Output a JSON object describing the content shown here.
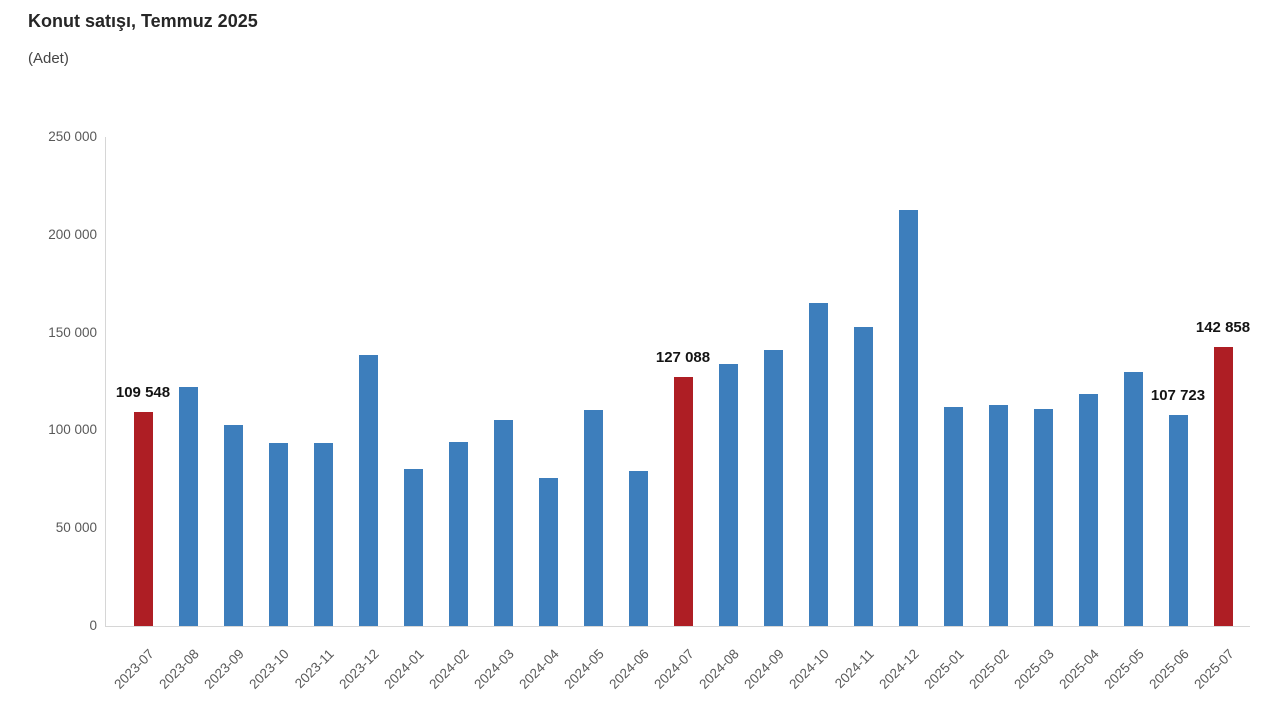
{
  "chart": {
    "title": "Konut satışı, Temmuz 2025",
    "subtitle": "(Adet)"
  },
  "chart_data": {
    "type": "bar",
    "title": "Konut satışı, Temmuz 2025",
    "subtitle": "(Adet)",
    "unit": "Adet",
    "xlabel": "",
    "ylabel": "",
    "ylim": [
      0,
      250000
    ],
    "ytick_interval": 50000,
    "ytick_labels": [
      "0",
      "50 000",
      "100 000",
      "150 000",
      "200 000",
      "250 000"
    ],
    "grid": false,
    "legend": "none",
    "bar_color": "#3d7ebc",
    "highlight_color": "#ae1e24",
    "categories": [
      "2023-07",
      "2023-08",
      "2023-09",
      "2023-10",
      "2023-11",
      "2023-12",
      "2024-01",
      "2024-02",
      "2024-03",
      "2024-04",
      "2024-05",
      "2024-06",
      "2024-07",
      "2024-08",
      "2024-09",
      "2024-10",
      "2024-11",
      "2024-12",
      "2025-01",
      "2025-02",
      "2025-03",
      "2025-04",
      "2025-05",
      "2025-06",
      "2025-07"
    ],
    "values": [
      109548,
      122091,
      102656,
      93761,
      93514,
      138577,
      80308,
      93902,
      105476,
      75569,
      110588,
      79313,
      127088,
      134155,
      140919,
      165138,
      153014,
      212637,
      112173,
      112818,
      110795,
      118359,
      130025,
      107723,
      142858
    ],
    "highlighted_categories": [
      "2023-07",
      "2024-07",
      "2025-07"
    ],
    "annotations": [
      {
        "category": "2023-07",
        "text": "109 548"
      },
      {
        "category": "2024-07",
        "text": "127 088"
      },
      {
        "category": "2025-06",
        "text": "107 723"
      },
      {
        "category": "2025-07",
        "text": "142 858"
      }
    ]
  }
}
